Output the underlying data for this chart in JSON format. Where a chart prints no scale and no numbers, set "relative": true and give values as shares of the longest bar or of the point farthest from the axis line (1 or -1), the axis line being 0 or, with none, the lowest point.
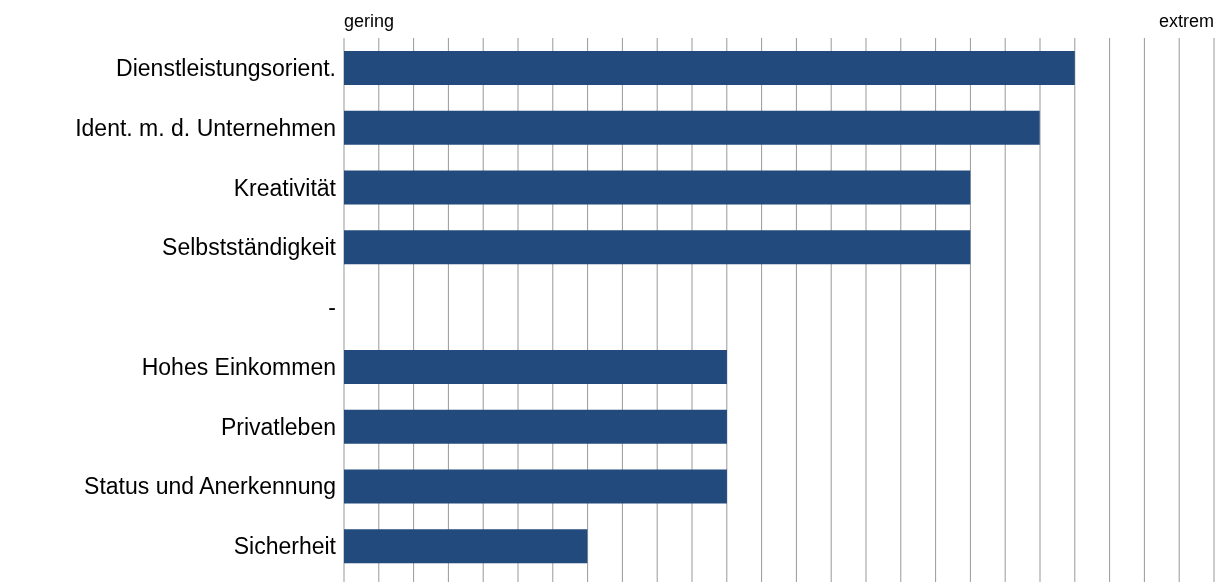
{
  "chart_data": {
    "type": "bar",
    "orientation": "horizontal",
    "relative": true,
    "categories": [
      "Dienstleistungsorient.",
      "Ident. m. d. Unternehmen",
      "Kreativität",
      "Selbstständigkeit",
      "-",
      "Hohes Einkommen",
      "Privatleben",
      "Status und Anerkennung",
      "Sicherheit"
    ],
    "values": [
      1,
      0.952,
      0.857,
      0.857,
      null,
      0.524,
      0.524,
      0.524,
      0.333
    ],
    "color": "#234a7d",
    "annotations": [
      "gering",
      "extrem"
    ],
    "grid": "x",
    "legend": false
  }
}
